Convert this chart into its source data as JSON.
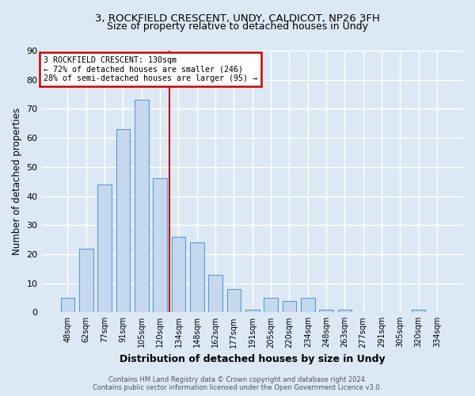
{
  "title_line1": "3, ROCKFIELD CRESCENT, UNDY, CALDICOT, NP26 3FH",
  "title_line2": "Size of property relative to detached houses in Undy",
  "xlabel": "Distribution of detached houses by size in Undy",
  "ylabel": "Number of detached properties",
  "categories": [
    "48sqm",
    "62sqm",
    "77sqm",
    "91sqm",
    "105sqm",
    "120sqm",
    "134sqm",
    "148sqm",
    "162sqm",
    "177sqm",
    "191sqm",
    "205sqm",
    "220sqm",
    "234sqm",
    "248sqm",
    "263sqm",
    "277sqm",
    "291sqm",
    "305sqm",
    "320sqm",
    "334sqm"
  ],
  "values": [
    5,
    22,
    44,
    63,
    73,
    46,
    26,
    24,
    13,
    8,
    1,
    5,
    4,
    5,
    1,
    1,
    0,
    0,
    0,
    1,
    0
  ],
  "bar_color": "#c5d8ed",
  "bar_edge_color": "#5b9bd5",
  "vline_color": "#cc0000",
  "annotation_title": "3 ROCKFIELD CRESCENT: 130sqm",
  "annotation_line2": "← 72% of detached houses are smaller (246)",
  "annotation_line3": "28% of semi-detached houses are larger (95) →",
  "annotation_box_color": "#cc0000",
  "annotation_bg": "#ffffff",
  "ylim": [
    0,
    90
  ],
  "yticks": [
    0,
    10,
    20,
    30,
    40,
    50,
    60,
    70,
    80,
    90
  ],
  "footer_line1": "Contains HM Land Registry data © Crown copyright and database right 2024.",
  "footer_line2": "Contains public sector information licensed under the Open Government Licence v3.0.",
  "fig_bg_color": "#dce9f5",
  "plot_bg": "#dce9f5",
  "grid_color": "#ffffff",
  "title1_fontsize": 9.5,
  "title2_fontsize": 9,
  "xlabel_fontsize": 9,
  "ylabel_fontsize": 8.5,
  "bar_width": 0.75,
  "vline_index": 6
}
